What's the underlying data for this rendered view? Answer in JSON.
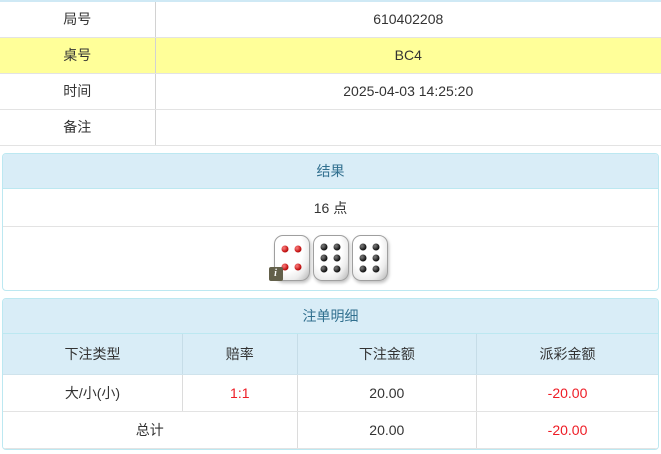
{
  "colors": {
    "highlight_yellow": "#ffff99",
    "panel_header_bg": "#d9edf7",
    "panel_border": "#bce8f1",
    "panel_title_text": "#31708f",
    "danger_red": "#ee1c25"
  },
  "info_table": {
    "rows": [
      {
        "label": "局号",
        "value": "610402208",
        "highlight": false
      },
      {
        "label": "桌号",
        "value": "BC4",
        "highlight": true
      },
      {
        "label": "时间",
        "value": "2025-04-03 14:25:20",
        "highlight": false
      },
      {
        "label": "备注",
        "value": "",
        "highlight": false
      }
    ]
  },
  "result_panel": {
    "title": "结果",
    "points": "16 点",
    "dice": [
      {
        "value": 4,
        "color": "red"
      },
      {
        "value": 6,
        "color": "black"
      },
      {
        "value": 6,
        "color": "black"
      }
    ],
    "info_badge": {
      "glyph": "i",
      "on_die_index": 0
    }
  },
  "bets_panel": {
    "title": "注单明细",
    "columns": [
      "下注类型",
      "赔率",
      "下注金额",
      "派彩金额"
    ],
    "rows": [
      {
        "type": "大/小(小)",
        "odds": "1:1",
        "bet": "20.00",
        "payout": "-20.00"
      }
    ],
    "total": {
      "label": "总计",
      "bet": "20.00",
      "payout": "-20.00"
    }
  }
}
